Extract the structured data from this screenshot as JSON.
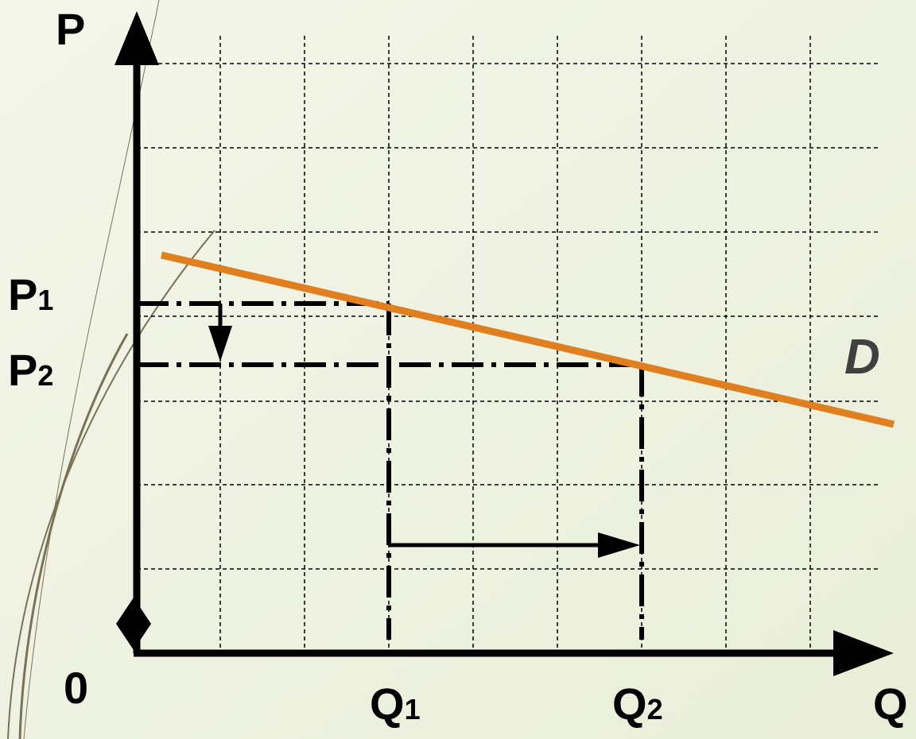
{
  "axis_labels": {
    "y": "P",
    "x": "Q",
    "origin": "0"
  },
  "prices": [
    {
      "letter": "P",
      "sub": "1"
    },
    {
      "letter": "P",
      "sub": "2"
    }
  ],
  "quantities": [
    {
      "letter": "Q",
      "sub": "1"
    },
    {
      "letter": "Q",
      "sub": "2"
    }
  ],
  "curve": "D"
}
